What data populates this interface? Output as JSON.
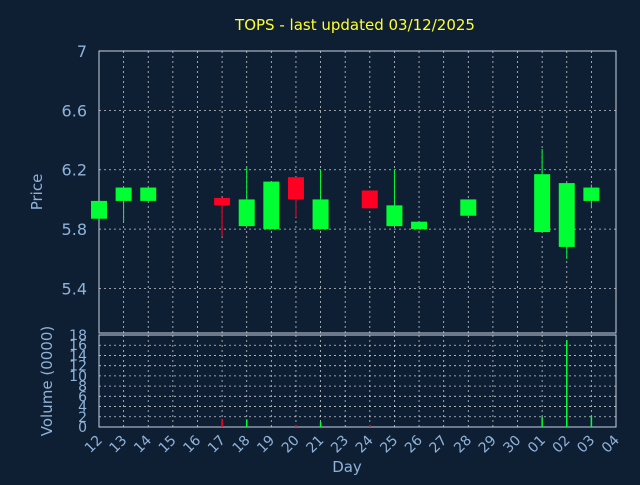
{
  "chart_data": [
    {
      "type": "candlestick",
      "title": "TOPS - last updated 03/12/2025",
      "ylabel": "Price",
      "ylim": [
        5.1,
        7.0
      ],
      "yticks": [
        "7",
        "6.6",
        "6.2",
        "5.8",
        "5.4"
      ],
      "ytick_values": [
        7.0,
        6.6,
        6.2,
        5.8,
        5.4
      ],
      "grid": true,
      "colors": {
        "up": "#00ff33",
        "down": "#ff0022",
        "background": "#0f1f33"
      },
      "candles": [
        {
          "day": "12",
          "open": 5.87,
          "close": 5.99,
          "high": 5.99,
          "low": 5.87
        },
        {
          "day": "13",
          "open": 5.99,
          "close": 6.08,
          "high": 6.08,
          "low": 5.85
        },
        {
          "day": "14",
          "open": 5.99,
          "close": 6.08,
          "high": 6.08,
          "low": 5.99
        },
        {
          "day": "17",
          "open": 6.01,
          "close": 5.96,
          "high": 6.01,
          "low": 5.75
        },
        {
          "day": "18",
          "open": 5.82,
          "close": 6.0,
          "high": 6.22,
          "low": 5.82
        },
        {
          "day": "19",
          "open": 5.8,
          "close": 6.12,
          "high": 6.12,
          "low": 5.8
        },
        {
          "day": "20",
          "open": 6.15,
          "close": 6.0,
          "high": 6.15,
          "low": 5.88
        },
        {
          "day": "21",
          "open": 5.8,
          "close": 6.0,
          "high": 6.2,
          "low": 5.8
        },
        {
          "day": "24",
          "open": 6.06,
          "close": 5.94,
          "high": 6.06,
          "low": 5.94
        },
        {
          "day": "25",
          "open": 5.82,
          "close": 5.96,
          "high": 6.2,
          "low": 5.82
        },
        {
          "day": "26",
          "open": 5.8,
          "close": 5.85,
          "high": 5.85,
          "low": 5.8
        },
        {
          "day": "28",
          "open": 5.89,
          "close": 6.0,
          "high": 6.0,
          "low": 5.89
        },
        {
          "day": "01",
          "open": 5.78,
          "close": 6.17,
          "high": 6.34,
          "low": 5.78
        },
        {
          "day": "02",
          "open": 5.68,
          "close": 6.11,
          "high": 6.11,
          "low": 5.6
        },
        {
          "day": "03",
          "open": 5.99,
          "close": 6.08,
          "high": 6.1,
          "low": 5.94
        }
      ]
    },
    {
      "type": "bar",
      "ylabel": "Volume (0000)",
      "xlabel": "Day",
      "ylim": [
        0,
        18
      ],
      "yticks": [
        "18",
        "16",
        "14",
        "12",
        "10",
        "8",
        "6",
        "4",
        "2",
        "0"
      ],
      "ytick_values": [
        18,
        16,
        14,
        12,
        10,
        8,
        6,
        4,
        2,
        0
      ],
      "categories": [
        "12",
        "13",
        "14",
        "15",
        "16",
        "17",
        "18",
        "19",
        "20",
        "21",
        "23",
        "24",
        "25",
        "26",
        "27",
        "28",
        "29",
        "30",
        "01",
        "02",
        "03",
        "04"
      ],
      "bars": [
        {
          "day": "17",
          "value": 1.6,
          "color": "#ff0022"
        },
        {
          "day": "18",
          "value": 1.5,
          "color": "#00ff33"
        },
        {
          "day": "20",
          "value": 0.4,
          "color": "#ff0022"
        },
        {
          "day": "21",
          "value": 1.0,
          "color": "#00ff33"
        },
        {
          "day": "24",
          "value": 0.4,
          "color": "#ff0022"
        },
        {
          "day": "01",
          "value": 2.0,
          "color": "#00ff33"
        },
        {
          "day": "02",
          "value": 17.0,
          "color": "#00ff33"
        },
        {
          "day": "03",
          "value": 2.2,
          "color": "#00ff33"
        }
      ]
    }
  ]
}
